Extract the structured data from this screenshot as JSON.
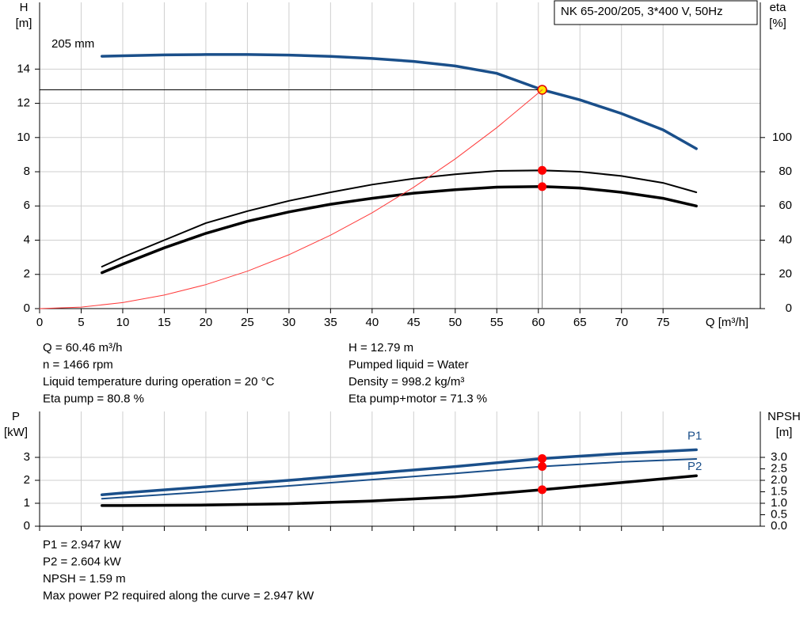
{
  "chart_data": [
    {
      "type": "line",
      "title": "NK 65-200/205, 3*400 V, 50Hz",
      "ylabel": [
        "H",
        "[m]"
      ],
      "y2label": [
        "eta",
        "[%]"
      ],
      "xlabel": "Q [m³/h]",
      "xlim": [
        0,
        86.7
      ],
      "xticks": [
        0,
        5,
        10,
        15,
        20,
        25,
        30,
        35,
        40,
        45,
        50,
        55,
        60,
        65,
        70,
        75
      ],
      "ylim": [
        0,
        17.9
      ],
      "yticks": [
        0,
        2,
        4,
        6,
        8,
        10,
        12,
        14
      ],
      "y2lim": [
        0,
        179
      ],
      "y2ticks": [
        0,
        20,
        40,
        60,
        80,
        100
      ],
      "grid": true,
      "operating_q": 60.46,
      "series": [
        {
          "name": "205 mm",
          "color": "#1a4f8a",
          "marker_color": "#ffe800",
          "x": [
            7.5,
            10,
            15,
            20,
            25,
            30,
            35,
            40,
            45,
            50,
            55,
            60.46,
            65,
            70,
            75,
            79
          ],
          "values": [
            14.75,
            14.78,
            14.83,
            14.85,
            14.85,
            14.82,
            14.74,
            14.62,
            14.45,
            14.18,
            13.75,
            12.79,
            12.2,
            11.4,
            10.45,
            9.35
          ]
        },
        {
          "color": "#000000",
          "marker_color": "#ff0000",
          "axis": "y2",
          "x": [
            7.5,
            10,
            15,
            20,
            25,
            30,
            35,
            40,
            45,
            50,
            55,
            60.46,
            65,
            70,
            75,
            79
          ],
          "values": [
            24.5,
            30,
            40,
            50,
            57,
            63,
            68,
            72.5,
            76,
            78.5,
            80.5,
            80.8,
            80,
            77.5,
            73.5,
            68
          ]
        },
        {
          "color": "#000000",
          "marker_color": "#ff0000",
          "axis": "y2",
          "x": [
            7.5,
            10,
            15,
            20,
            25,
            30,
            35,
            40,
            45,
            50,
            55,
            60.46,
            65,
            70,
            75,
            79
          ],
          "values": [
            21,
            26,
            35.5,
            44,
            51,
            56.5,
            61,
            64.5,
            67.5,
            69.5,
            71,
            71.3,
            70.5,
            68,
            64.5,
            60
          ]
        },
        {
          "color": "#ff3b3b",
          "x": [
            0,
            5,
            10,
            15,
            20,
            25,
            30,
            35,
            40,
            45,
            50,
            55,
            60.46
          ],
          "values": [
            0,
            0.09,
            0.35,
            0.79,
            1.4,
            2.19,
            3.15,
            4.29,
            5.6,
            7.09,
            8.75,
            10.58,
            12.79
          ]
        }
      ],
      "notes": [
        [
          "Q = 60.46 m³/h",
          "n = 1466 rpm",
          "Liquid temperature during operation = 20 °C",
          "Eta pump = 80.8 %"
        ],
        [
          "H = 12.79 m",
          "Pumped liquid = Water",
          "Density = 998.2 kg/m³",
          "Eta pump+motor = 71.3 %"
        ]
      ]
    },
    {
      "type": "line",
      "ylabel": [
        "P",
        "[kW]"
      ],
      "y2label": [
        "NPSH",
        "[m]"
      ],
      "xlim": [
        0,
        86.7
      ],
      "xticks": [
        0,
        5,
        10,
        15,
        20,
        25,
        30,
        35,
        40,
        45,
        50,
        55,
        60,
        65,
        70,
        75
      ],
      "ylim": [
        0,
        5
      ],
      "yticks": [
        0,
        1,
        2,
        3
      ],
      "y2lim": [
        0,
        5
      ],
      "y2ticks": [
        {
          "value": 0,
          "label": "0.0"
        },
        0.5,
        {
          "value": 1,
          "label": "1.0"
        },
        1.5,
        {
          "value": 2,
          "label": "2.0"
        },
        2.5,
        {
          "value": 3,
          "label": "3.0"
        }
      ],
      "grid": true,
      "operating_q": 60.46,
      "series": [
        {
          "name": "P1",
          "color": "#1a4f8a",
          "marker_color": "#ff0000",
          "x": [
            7.5,
            10,
            20,
            30,
            40,
            50,
            60.46,
            70,
            79
          ],
          "values": [
            1.37,
            1.45,
            1.72,
            2.0,
            2.3,
            2.6,
            2.947,
            3.17,
            3.33
          ]
        },
        {
          "name": "P2",
          "color": "#1a4f8a",
          "marker_color": "#ff0000",
          "x": [
            7.5,
            10,
            20,
            30,
            40,
            50,
            60.46,
            70,
            79
          ],
          "values": [
            1.2,
            1.26,
            1.5,
            1.76,
            2.03,
            2.3,
            2.604,
            2.8,
            2.93
          ]
        },
        {
          "color": "#000000",
          "marker_color": "#ff0000",
          "axis": "y2",
          "x": [
            7.5,
            10,
            20,
            30,
            40,
            50,
            60.46,
            70,
            79
          ],
          "values": [
            0.9,
            0.9,
            0.92,
            0.98,
            1.1,
            1.28,
            1.59,
            1.9,
            2.2
          ]
        }
      ],
      "notes": [
        [
          "P1 = 2.947 kW",
          "P2 = 2.604 kW",
          "NPSH = 1.59 m",
          "Max power P2 required along the curve = 2.947 kW"
        ]
      ]
    }
  ]
}
